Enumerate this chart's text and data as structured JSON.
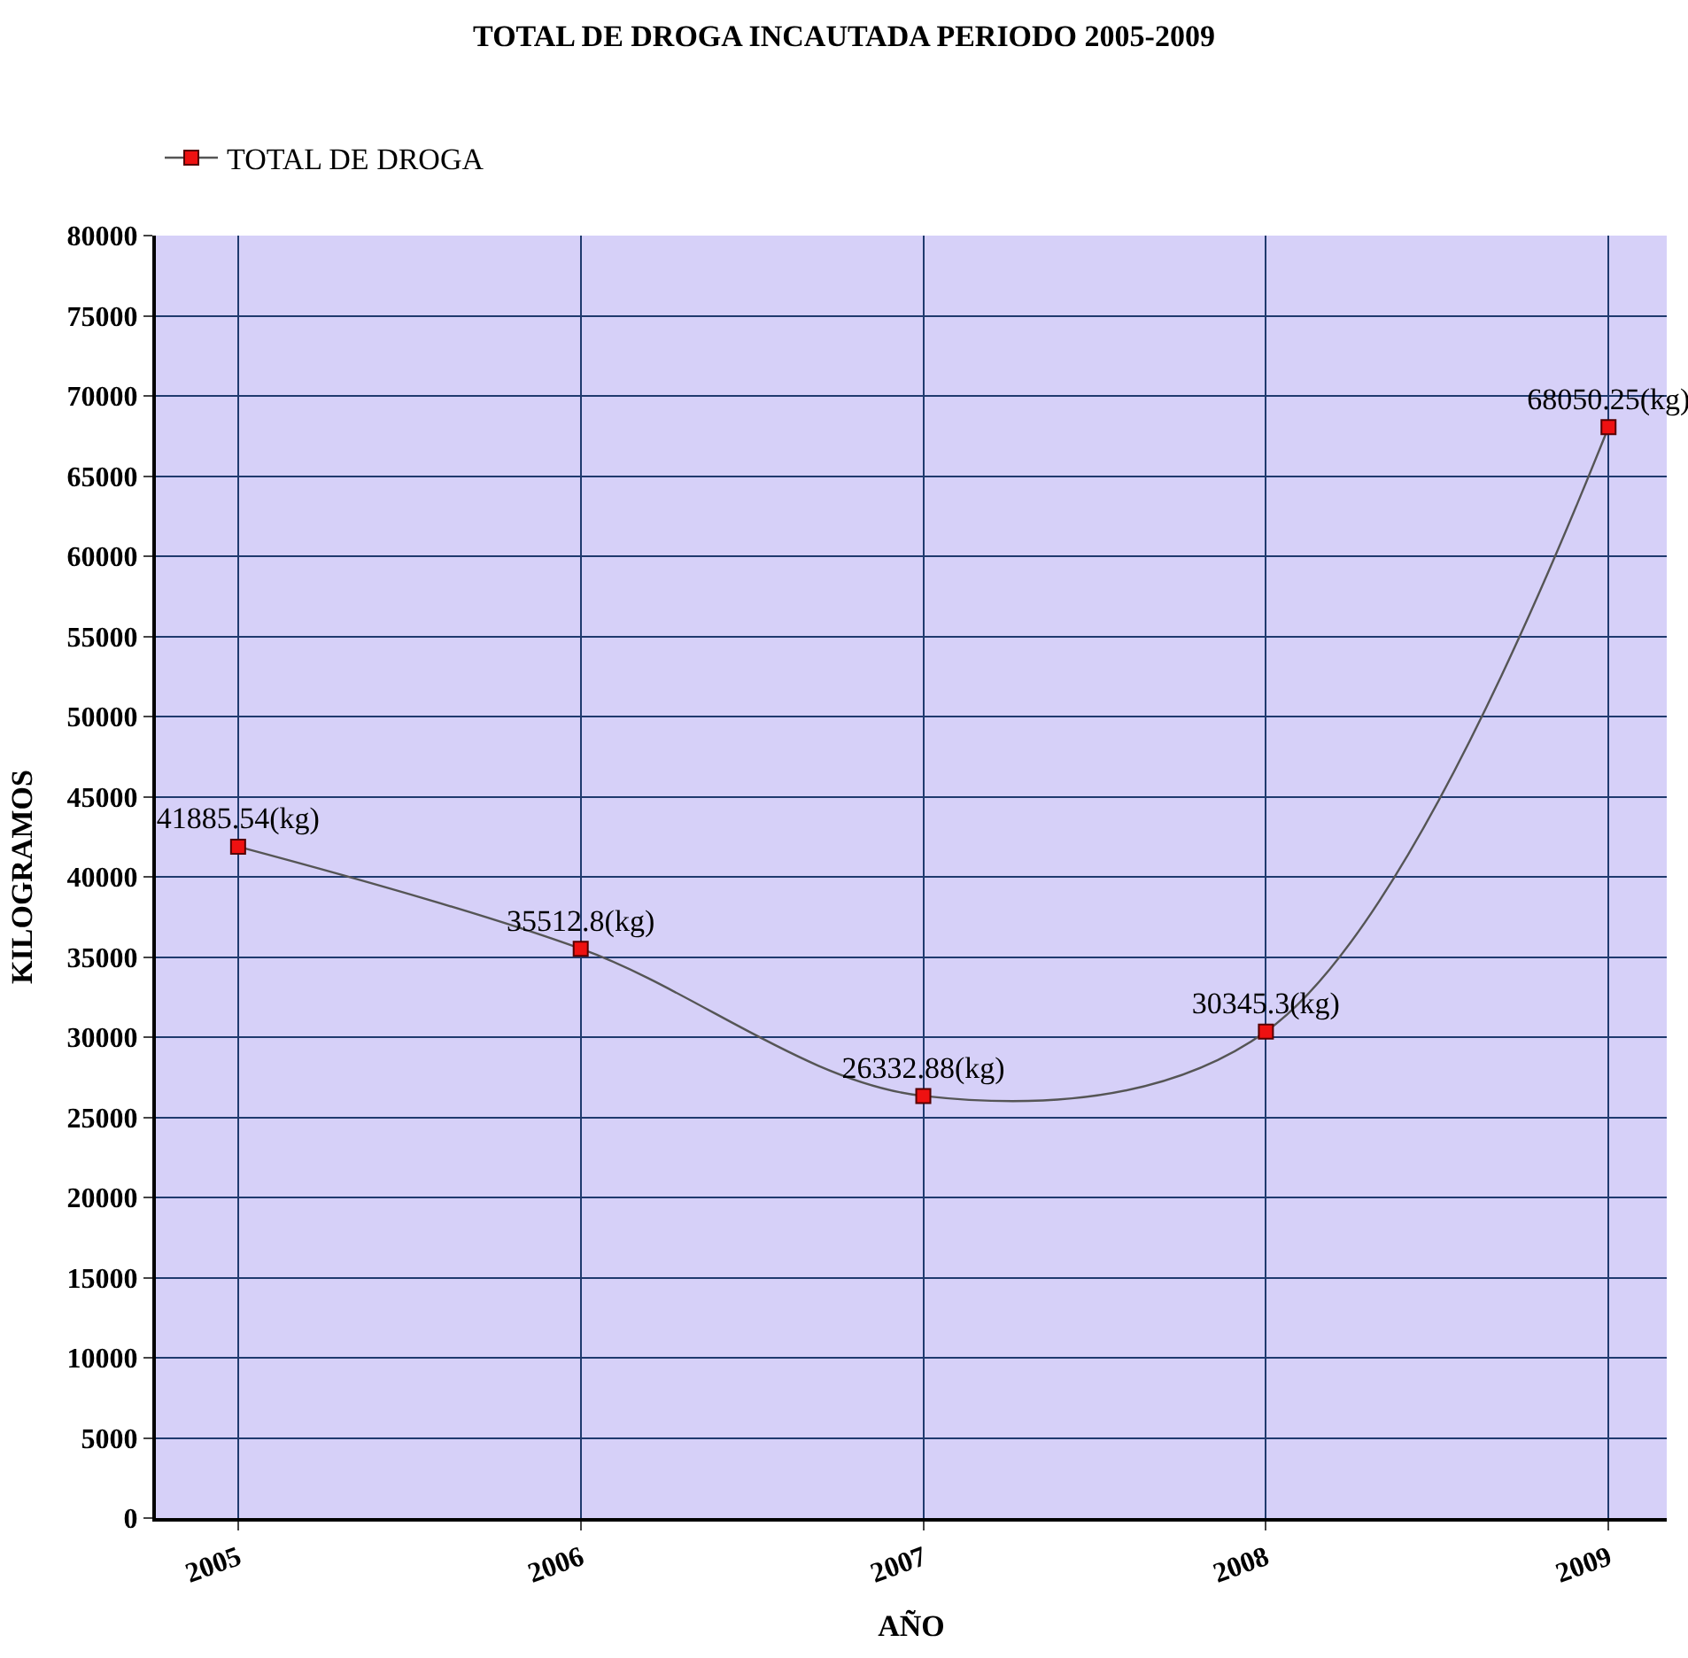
{
  "chart_data": {
    "type": "line",
    "title": "TOTAL DE DROGA INCAUTADA PERIODO 2005-2009",
    "xlabel": "AÑO",
    "ylabel": "KILOGRAMOS",
    "categories": [
      "2005",
      "2006",
      "2007",
      "2008",
      "2009"
    ],
    "series": [
      {
        "name": "TOTAL DE DROGA",
        "color": "#555555",
        "colors": [
          "#ee1111",
          "#ee1111",
          "#ee1111",
          "#ee1111",
          "#ee1111"
        ],
        "values": [
          41885.54,
          35512.8,
          26332.88,
          30345.3,
          68050.25
        ],
        "value_labels": [
          "41885.54(kg)",
          "35512.8(kg)",
          "26332.88(kg)",
          "30345.3(kg)",
          "68050.25(kg)"
        ]
      }
    ],
    "ylim": [
      0,
      80000
    ],
    "yticks": [
      0,
      5000,
      10000,
      15000,
      20000,
      25000,
      30000,
      35000,
      40000,
      45000,
      50000,
      55000,
      60000,
      65000,
      70000,
      75000,
      80000
    ],
    "grid": true,
    "legend": "top left",
    "marker": "square",
    "line_style": "solid"
  }
}
